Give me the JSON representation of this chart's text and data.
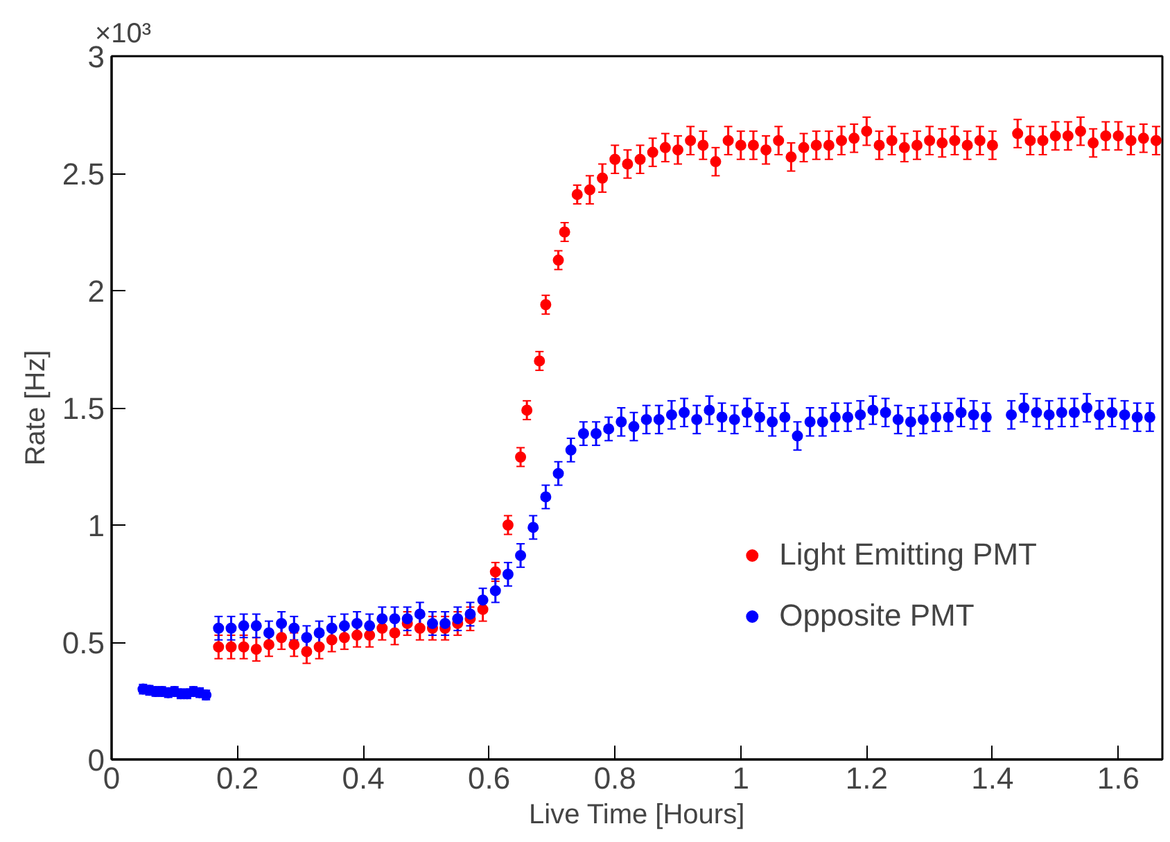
{
  "chart_data": {
    "type": "scatter",
    "xlabel": "Live Time [Hours]",
    "ylabel": "Rate [Hz]",
    "xlim": [
      0,
      1.67
    ],
    "ylim": [
      0,
      3
    ],
    "xticks": [
      0,
      0.2,
      0.4,
      0.6,
      0.8,
      1,
      1.2,
      1.4,
      1.6
    ],
    "yticks": [
      0,
      0.5,
      1,
      1.5,
      2,
      2.5,
      3
    ],
    "annotations": [
      "×10³"
    ],
    "marker": "circle",
    "grid": false,
    "legend": "bottom right",
    "series": [
      {
        "name": "Light Emitting PMT",
        "color": "#ff0000",
        "x": [
          0.17,
          0.19,
          0.21,
          0.23,
          0.25,
          0.27,
          0.29,
          0.31,
          0.33,
          0.35,
          0.37,
          0.39,
          0.41,
          0.43,
          0.45,
          0.47,
          0.49,
          0.51,
          0.53,
          0.55,
          0.57,
          0.59,
          0.61,
          0.63,
          0.65,
          0.66,
          0.68,
          0.69,
          0.71,
          0.72,
          0.74,
          0.76,
          0.78,
          0.8,
          0.82,
          0.84,
          0.86,
          0.88,
          0.9,
          0.92,
          0.94,
          0.96,
          0.98,
          1.0,
          1.02,
          1.04,
          1.06,
          1.08,
          1.1,
          1.12,
          1.14,
          1.16,
          1.18,
          1.2,
          1.22,
          1.24,
          1.26,
          1.28,
          1.3,
          1.32,
          1.34,
          1.36,
          1.38,
          1.4,
          1.44,
          1.46,
          1.48,
          1.5,
          1.52,
          1.54,
          1.56,
          1.58,
          1.6,
          1.62,
          1.64,
          1.66
        ],
        "values": [
          0.48,
          0.48,
          0.48,
          0.47,
          0.49,
          0.52,
          0.49,
          0.46,
          0.48,
          0.51,
          0.52,
          0.53,
          0.53,
          0.56,
          0.54,
          0.58,
          0.56,
          0.56,
          0.56,
          0.58,
          0.6,
          0.64,
          0.8,
          1.0,
          1.29,
          1.49,
          1.7,
          1.94,
          2.13,
          2.25,
          2.41,
          2.43,
          2.48,
          2.56,
          2.54,
          2.56,
          2.59,
          2.61,
          2.6,
          2.64,
          2.62,
          2.55,
          2.64,
          2.62,
          2.62,
          2.6,
          2.64,
          2.57,
          2.61,
          2.62,
          2.62,
          2.64,
          2.65,
          2.68,
          2.62,
          2.64,
          2.61,
          2.62,
          2.64,
          2.63,
          2.64,
          2.62,
          2.64,
          2.62,
          2.67,
          2.64,
          2.64,
          2.66,
          2.66,
          2.68,
          2.63,
          2.66,
          2.66,
          2.64,
          2.65,
          2.64
        ],
        "errors": [
          0.05,
          0.05,
          0.05,
          0.05,
          0.05,
          0.05,
          0.05,
          0.05,
          0.05,
          0.05,
          0.05,
          0.05,
          0.05,
          0.05,
          0.05,
          0.05,
          0.05,
          0.05,
          0.05,
          0.05,
          0.05,
          0.05,
          0.04,
          0.04,
          0.04,
          0.04,
          0.04,
          0.04,
          0.04,
          0.04,
          0.04,
          0.06,
          0.06,
          0.06,
          0.06,
          0.06,
          0.06,
          0.06,
          0.06,
          0.06,
          0.06,
          0.06,
          0.06,
          0.06,
          0.06,
          0.06,
          0.06,
          0.06,
          0.06,
          0.06,
          0.06,
          0.06,
          0.06,
          0.06,
          0.06,
          0.06,
          0.06,
          0.06,
          0.06,
          0.06,
          0.06,
          0.06,
          0.06,
          0.06,
          0.06,
          0.06,
          0.06,
          0.06,
          0.06,
          0.06,
          0.06,
          0.06,
          0.06,
          0.06,
          0.06,
          0.06
        ]
      },
      {
        "name": "Opposite PMT",
        "color": "#0000ff",
        "x": [
          0.05,
          0.06,
          0.07,
          0.08,
          0.09,
          0.1,
          0.11,
          0.12,
          0.13,
          0.14,
          0.15,
          0.17,
          0.19,
          0.21,
          0.23,
          0.25,
          0.27,
          0.29,
          0.31,
          0.33,
          0.35,
          0.37,
          0.39,
          0.41,
          0.43,
          0.45,
          0.47,
          0.49,
          0.51,
          0.53,
          0.55,
          0.57,
          0.59,
          0.61,
          0.63,
          0.65,
          0.67,
          0.69,
          0.71,
          0.73,
          0.75,
          0.77,
          0.79,
          0.81,
          0.83,
          0.85,
          0.87,
          0.89,
          0.91,
          0.93,
          0.95,
          0.97,
          0.99,
          1.01,
          1.03,
          1.05,
          1.07,
          1.09,
          1.11,
          1.13,
          1.15,
          1.17,
          1.19,
          1.21,
          1.23,
          1.25,
          1.27,
          1.29,
          1.31,
          1.33,
          1.35,
          1.37,
          1.39,
          1.43,
          1.45,
          1.47,
          1.49,
          1.51,
          1.53,
          1.55,
          1.57,
          1.59,
          1.61,
          1.63,
          1.65
        ],
        "values": [
          0.3,
          0.295,
          0.29,
          0.29,
          0.285,
          0.29,
          0.28,
          0.28,
          0.29,
          0.285,
          0.275,
          0.56,
          0.56,
          0.57,
          0.57,
          0.54,
          0.58,
          0.56,
          0.52,
          0.54,
          0.56,
          0.57,
          0.58,
          0.57,
          0.6,
          0.6,
          0.6,
          0.62,
          0.58,
          0.58,
          0.6,
          0.62,
          0.68,
          0.72,
          0.79,
          0.87,
          0.99,
          1.12,
          1.22,
          1.32,
          1.39,
          1.39,
          1.41,
          1.44,
          1.42,
          1.45,
          1.45,
          1.47,
          1.48,
          1.45,
          1.49,
          1.46,
          1.45,
          1.48,
          1.46,
          1.44,
          1.46,
          1.38,
          1.44,
          1.44,
          1.46,
          1.46,
          1.47,
          1.49,
          1.48,
          1.45,
          1.44,
          1.45,
          1.46,
          1.46,
          1.48,
          1.47,
          1.46,
          1.47,
          1.5,
          1.48,
          1.47,
          1.48,
          1.48,
          1.5,
          1.47,
          1.48,
          1.47,
          1.46,
          1.46
        ],
        "errors": [
          0.02,
          0.02,
          0.02,
          0.02,
          0.02,
          0.02,
          0.02,
          0.02,
          0.02,
          0.02,
          0.02,
          0.05,
          0.05,
          0.05,
          0.05,
          0.05,
          0.05,
          0.05,
          0.05,
          0.05,
          0.05,
          0.05,
          0.05,
          0.05,
          0.05,
          0.05,
          0.05,
          0.05,
          0.05,
          0.05,
          0.05,
          0.05,
          0.05,
          0.05,
          0.05,
          0.05,
          0.05,
          0.05,
          0.05,
          0.05,
          0.05,
          0.05,
          0.05,
          0.06,
          0.06,
          0.06,
          0.06,
          0.06,
          0.06,
          0.06,
          0.06,
          0.06,
          0.06,
          0.06,
          0.06,
          0.06,
          0.06,
          0.06,
          0.06,
          0.06,
          0.06,
          0.06,
          0.06,
          0.06,
          0.06,
          0.06,
          0.06,
          0.06,
          0.06,
          0.06,
          0.06,
          0.06,
          0.06,
          0.06,
          0.06,
          0.06,
          0.06,
          0.06,
          0.06,
          0.06,
          0.06,
          0.06,
          0.06,
          0.06,
          0.06
        ]
      }
    ]
  }
}
